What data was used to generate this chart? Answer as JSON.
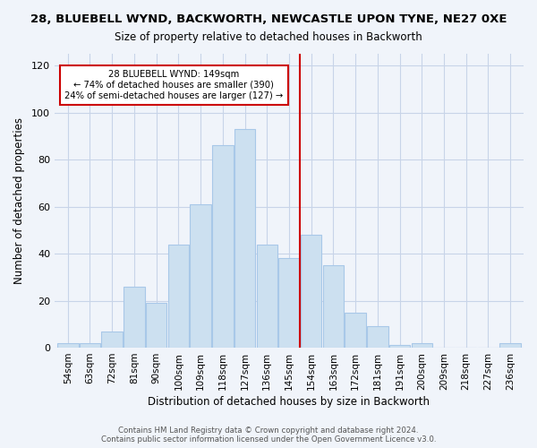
{
  "title_line1": "28, BLUEBELL WYND, BACKWORTH, NEWCASTLE UPON TYNE, NE27 0XE",
  "title_line2": "Size of property relative to detached houses in Backworth",
  "xlabel": "Distribution of detached houses by size in Backworth",
  "ylabel": "Number of detached properties",
  "bar_labels": [
    "54sqm",
    "63sqm",
    "72sqm",
    "81sqm",
    "90sqm",
    "100sqm",
    "109sqm",
    "118sqm",
    "127sqm",
    "136sqm",
    "145sqm",
    "154sqm",
    "163sqm",
    "172sqm",
    "181sqm",
    "191sqm",
    "200sqm",
    "209sqm",
    "218sqm",
    "227sqm",
    "236sqm"
  ],
  "bar_values": [
    2,
    2,
    7,
    26,
    19,
    44,
    61,
    86,
    93,
    44,
    38,
    48,
    35,
    15,
    9,
    1,
    2,
    0,
    0,
    0,
    2
  ],
  "bar_color": "#cce0f0",
  "bar_edge_color": "#a8c8e8",
  "vline_color": "#cc0000",
  "annotation_text": "28 BLUEBELL WYND: 149sqm\n← 74% of detached houses are smaller (390)\n24% of semi-detached houses are larger (127) →",
  "annotation_box_color": "white",
  "annotation_box_edge": "#cc0000",
  "ylim": [
    0,
    125
  ],
  "yticks": [
    0,
    20,
    40,
    60,
    80,
    100,
    120
  ],
  "footer_text": "Contains HM Land Registry data © Crown copyright and database right 2024.\nContains public sector information licensed under the Open Government Licence v3.0.",
  "background_color": "#f0f4fa",
  "grid_color": "#c8d4e8"
}
